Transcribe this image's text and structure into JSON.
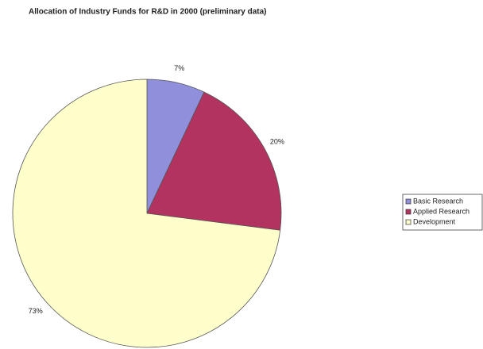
{
  "chart_data": {
    "type": "pie",
    "title": "Allocation of Industry Funds for R&D in 2000 (preliminary data)",
    "categories": [
      "Basic Research",
      "Applied Research",
      "Development"
    ],
    "values": [
      7,
      20,
      73
    ],
    "value_labels": [
      "7%",
      "20%",
      "73%"
    ],
    "colors": [
      "#8f8fdc",
      "#b2335f",
      "#ffffcc"
    ],
    "legend": "right"
  }
}
